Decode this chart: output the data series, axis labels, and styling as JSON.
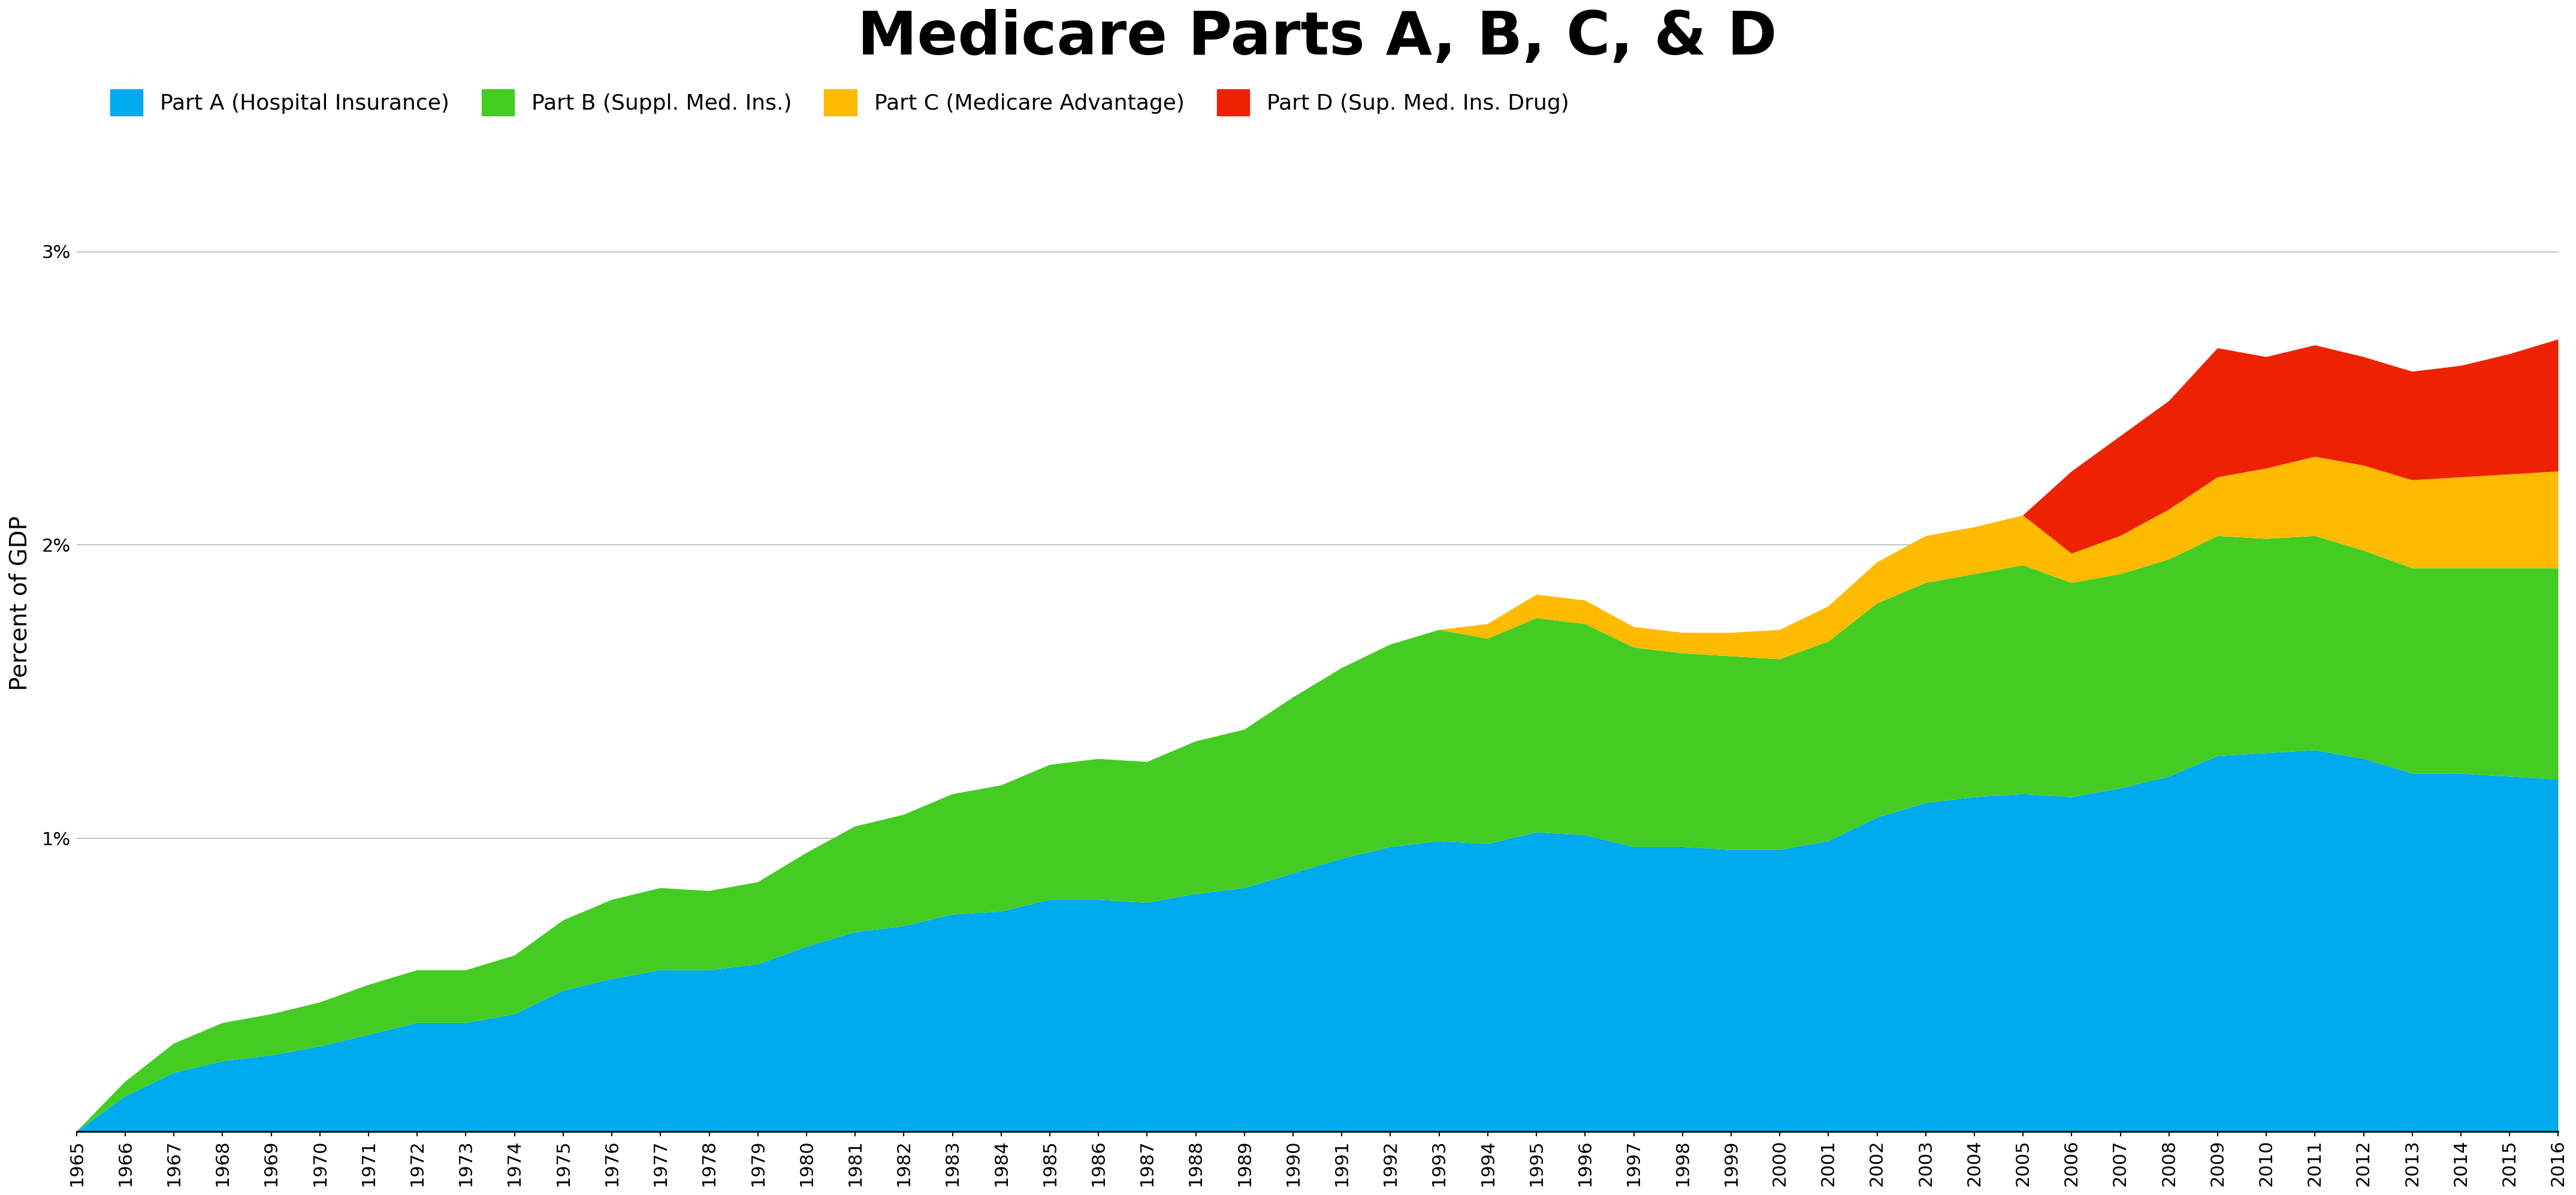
{
  "title": "Medicare Parts A, B, C, & D",
  "ylabel": "Percent of GDP",
  "colors": {
    "part_a": "#00AAEE",
    "part_b": "#44CC22",
    "part_c": "#FFBB00",
    "part_d": "#EE2200"
  },
  "legend_labels": [
    "Part A (Hospital Insurance)",
    "Part B (Suppl. Med. Ins.)",
    "Part C (Medicare Advantage)",
    "Part D (Sup. Med. Ins. Drug)"
  ],
  "years": [
    1965,
    1966,
    1967,
    1968,
    1969,
    1970,
    1971,
    1972,
    1973,
    1974,
    1975,
    1976,
    1977,
    1978,
    1979,
    1980,
    1981,
    1982,
    1983,
    1984,
    1985,
    1986,
    1987,
    1988,
    1989,
    1990,
    1991,
    1992,
    1993,
    1994,
    1995,
    1996,
    1997,
    1998,
    1999,
    2000,
    2001,
    2002,
    2003,
    2004,
    2005,
    2006,
    2007,
    2008,
    2009,
    2010,
    2011,
    2012,
    2013,
    2014,
    2015,
    2016
  ],
  "part_a": [
    0.0,
    0.0012,
    0.002,
    0.0024,
    0.0026,
    0.0029,
    0.0033,
    0.0037,
    0.0037,
    0.004,
    0.0048,
    0.0052,
    0.0055,
    0.0055,
    0.0057,
    0.0063,
    0.0068,
    0.007,
    0.0074,
    0.0075,
    0.0079,
    0.0079,
    0.0078,
    0.0081,
    0.0083,
    0.0088,
    0.0093,
    0.0097,
    0.0099,
    0.0098,
    0.0102,
    0.0101,
    0.0097,
    0.0097,
    0.0096,
    0.0096,
    0.0099,
    0.0107,
    0.0112,
    0.0114,
    0.0115,
    0.0114,
    0.0117,
    0.0121,
    0.0128,
    0.0129,
    0.013,
    0.0127,
    0.0122,
    0.0122,
    0.0121,
    0.012
  ],
  "part_b": [
    0.0,
    0.0005,
    0.001,
    0.0013,
    0.0014,
    0.0015,
    0.0017,
    0.0018,
    0.0018,
    0.002,
    0.0024,
    0.0027,
    0.0028,
    0.0027,
    0.0028,
    0.0032,
    0.0036,
    0.0038,
    0.0041,
    0.0043,
    0.0046,
    0.0048,
    0.0048,
    0.0052,
    0.0054,
    0.006,
    0.0065,
    0.0069,
    0.0072,
    0.007,
    0.0073,
    0.0072,
    0.0068,
    0.0066,
    0.0066,
    0.0065,
    0.0068,
    0.0073,
    0.0075,
    0.0076,
    0.0078,
    0.0073,
    0.0073,
    0.0074,
    0.0075,
    0.0073,
    0.0073,
    0.0071,
    0.007,
    0.007,
    0.0071,
    0.0072
  ],
  "part_c": [
    0.0,
    0.0,
    0.0,
    0.0,
    0.0,
    0.0,
    0.0,
    0.0,
    0.0,
    0.0,
    0.0,
    0.0,
    0.0,
    0.0,
    0.0,
    0.0,
    0.0,
    0.0,
    0.0,
    0.0,
    0.0,
    0.0,
    0.0,
    0.0,
    0.0,
    0.0,
    0.0,
    0.0,
    0.0,
    0.0005,
    0.0008,
    0.0008,
    0.0007,
    0.0007,
    0.0008,
    0.001,
    0.0012,
    0.0014,
    0.0016,
    0.0016,
    0.0017,
    0.001,
    0.0013,
    0.0017,
    0.002,
    0.0024,
    0.0027,
    0.0029,
    0.003,
    0.0031,
    0.0032,
    0.0033
  ],
  "part_d": [
    0.0,
    0.0,
    0.0,
    0.0,
    0.0,
    0.0,
    0.0,
    0.0,
    0.0,
    0.0,
    0.0,
    0.0,
    0.0,
    0.0,
    0.0,
    0.0,
    0.0,
    0.0,
    0.0,
    0.0,
    0.0,
    0.0,
    0.0,
    0.0,
    0.0,
    0.0,
    0.0,
    0.0,
    0.0,
    0.0,
    0.0,
    0.0,
    0.0,
    0.0,
    0.0,
    0.0,
    0.0,
    0.0,
    0.0,
    0.0,
    0.0,
    0.0028,
    0.0034,
    0.0037,
    0.0044,
    0.0038,
    0.0038,
    0.0037,
    0.0037,
    0.0038,
    0.0041,
    0.0045
  ],
  "background_color": "#ffffff",
  "grid_color": "#aaaaaa",
  "title_fontsize": 72,
  "label_fontsize": 28,
  "tick_fontsize": 22,
  "legend_fontsize": 26
}
